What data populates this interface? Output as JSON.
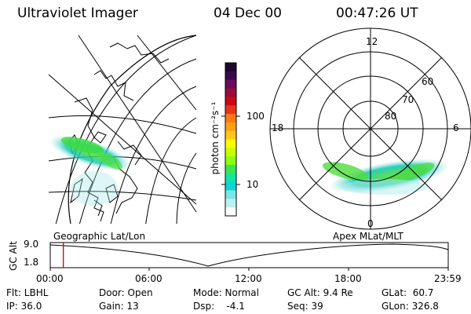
{
  "header": {
    "instrument": "Ultraviolet Imager",
    "date": "04 Dec 00",
    "time": "00:47:26 UT"
  },
  "colorbar": {
    "unit_label": "photon cm⁻²s⁻¹",
    "ticks": [
      "100",
      "10"
    ],
    "colors": [
      "#1a0a2a",
      "#3a0a4a",
      "#6a0a5a",
      "#9a0a3a",
      "#c80a14",
      "#e8321e",
      "#ff7814",
      "#ffa014",
      "#ffc814",
      "#ffff00",
      "#c8ff00",
      "#8cff14",
      "#3ce650",
      "#14e6a0",
      "#14d2d2",
      "#78e6e6",
      "#bef0f0",
      "#ffffff"
    ]
  },
  "polar_plot": {
    "mlt_labels": {
      "top": "12",
      "left": "18",
      "right": "6",
      "bottom": "0"
    },
    "lat_labels": [
      "60",
      "70",
      "80"
    ]
  },
  "timeline": {
    "ylabel": "GC Alt",
    "ytick_top": "9.0",
    "ytick_bottom": "1.8",
    "left_caption": "Geographic Lat/Lon",
    "right_caption": "Apex MLat/MLT",
    "xticks": [
      "00:00",
      "06:00",
      "12:00",
      "18:00",
      "23:59"
    ],
    "cursor_fraction": 0.033
  },
  "info": {
    "flt": "Flt: LBHL",
    "ip": "IP: 36.0",
    "door": "Door: Open",
    "gain": "Gain: 13",
    "mode": "Mode: Normal",
    "dsp": "Dsp:    -4.1",
    "gc_alt": "GC Alt: 9.4 Re",
    "seq": "Seq: 39",
    "glat": "GLat:  60.7",
    "glon": "GLon: 326.8"
  }
}
